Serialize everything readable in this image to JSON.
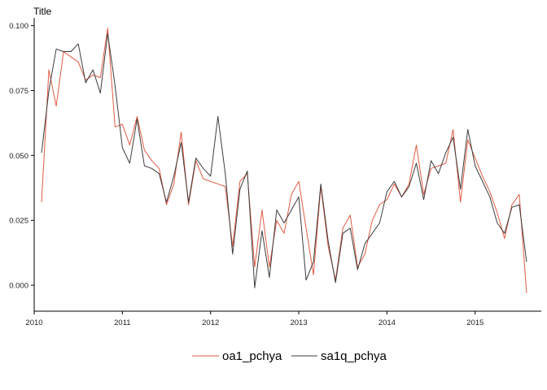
{
  "chart_data": {
    "type": "line",
    "title": "Title",
    "xlabel": "",
    "ylabel": "",
    "x_range": [
      2010.0,
      2015.75
    ],
    "ylim": [
      -0.01,
      0.103
    ],
    "x_ticks": [
      2010,
      2011,
      2012,
      2013,
      2014,
      2015
    ],
    "y_ticks": [
      0.0,
      0.025,
      0.05,
      0.075,
      0.1
    ],
    "y_tick_labels": [
      "0.000",
      "0.025",
      "0.050",
      "0.075",
      "0.100"
    ],
    "grid": false,
    "legend_position": "bottom",
    "x": [
      2010.0833,
      2010.1667,
      2010.25,
      2010.3333,
      2010.4167,
      2010.5,
      2010.5833,
      2010.6667,
      2010.75,
      2010.8333,
      2010.9167,
      2011.0,
      2011.0833,
      2011.1667,
      2011.25,
      2011.3333,
      2011.4167,
      2011.5,
      2011.5833,
      2011.6667,
      2011.75,
      2011.8333,
      2011.9167,
      2012.0,
      2012.0833,
      2012.1667,
      2012.25,
      2012.3333,
      2012.4167,
      2012.5,
      2012.5833,
      2012.6667,
      2012.75,
      2012.8333,
      2012.9167,
      2013.0,
      2013.0833,
      2013.1667,
      2013.25,
      2013.3333,
      2013.4167,
      2013.5,
      2013.5833,
      2013.6667,
      2013.75,
      2013.8333,
      2013.9167,
      2014.0,
      2014.0833,
      2014.1667,
      2014.25,
      2014.3333,
      2014.4167,
      2014.5,
      2014.5833,
      2014.6667,
      2014.75,
      2014.8333,
      2014.9167,
      2015.0,
      2015.0833,
      2015.1667,
      2015.25,
      2015.3333,
      2015.4167,
      2015.5,
      2015.5833
    ],
    "series": [
      {
        "name": "oa1_pchya",
        "color": "#e15b45",
        "values": [
          0.032,
          0.083,
          0.069,
          0.09,
          0.088,
          0.086,
          0.079,
          0.081,
          0.08,
          0.099,
          0.061,
          0.062,
          0.054,
          0.065,
          0.052,
          0.048,
          0.045,
          0.031,
          0.039,
          0.059,
          0.031,
          0.048,
          0.041,
          0.04,
          0.039,
          0.038,
          0.015,
          0.04,
          0.043,
          0.007,
          0.029,
          0.007,
          0.025,
          0.02,
          0.035,
          0.04,
          0.022,
          0.004,
          0.038,
          0.015,
          0.002,
          0.022,
          0.027,
          0.007,
          0.012,
          0.025,
          0.031,
          0.033,
          0.039,
          0.034,
          0.039,
          0.054,
          0.035,
          0.045,
          0.046,
          0.047,
          0.06,
          0.032,
          0.056,
          0.049,
          0.042,
          0.036,
          0.028,
          0.018,
          0.031,
          0.035,
          -0.003
        ]
      },
      {
        "name": "sa1q_pchya",
        "color": "#3d3d3d",
        "values": [
          0.051,
          0.075,
          0.091,
          0.09,
          0.09,
          0.093,
          0.078,
          0.083,
          0.074,
          0.097,
          0.077,
          0.053,
          0.047,
          0.064,
          0.046,
          0.045,
          0.043,
          0.032,
          0.042,
          0.055,
          0.032,
          0.049,
          0.045,
          0.042,
          0.065,
          0.043,
          0.012,
          0.037,
          0.044,
          -0.001,
          0.021,
          0.003,
          0.029,
          0.024,
          0.029,
          0.034,
          0.002,
          0.009,
          0.039,
          0.017,
          0.001,
          0.02,
          0.022,
          0.006,
          0.016,
          0.02,
          0.024,
          0.036,
          0.04,
          0.034,
          0.038,
          0.047,
          0.033,
          0.048,
          0.043,
          0.051,
          0.057,
          0.037,
          0.06,
          0.046,
          0.04,
          0.034,
          0.024,
          0.02,
          0.03,
          0.031,
          0.009
        ]
      }
    ]
  }
}
